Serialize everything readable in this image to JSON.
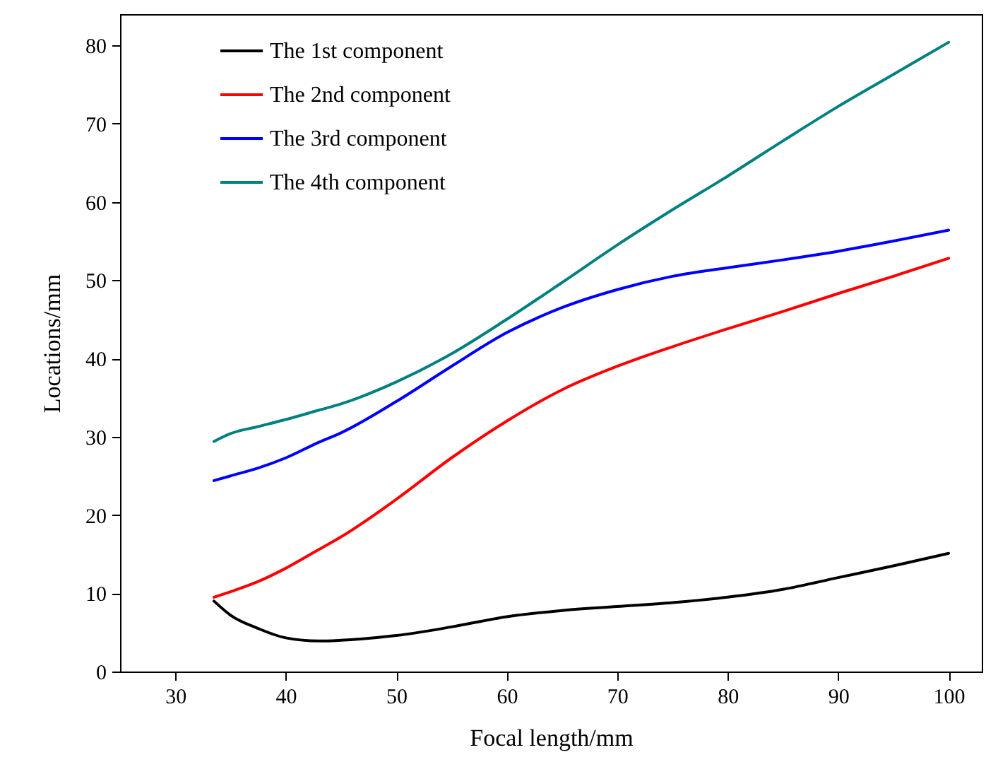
{
  "chart_data": {
    "type": "line",
    "xlabel": "Focal length/mm",
    "ylabel": "Locations/mm",
    "x": [
      33.5,
      35,
      37.5,
      40,
      43,
      45,
      50,
      55,
      60,
      65,
      70,
      75,
      80,
      85,
      90,
      95,
      100
    ],
    "series": [
      {
        "name": "The 1st component",
        "color": "#000000",
        "values": [
          9,
          7.2,
          5.5,
          4.3,
          3.9,
          4.0,
          4.6,
          5.7,
          7,
          7.8,
          8.3,
          8.8,
          9.5,
          10.5,
          12,
          13.5,
          15.1
        ]
      },
      {
        "name": "The 2nd component",
        "color": "#ff0000",
        "values": [
          9.5,
          10.2,
          11.5,
          13.2,
          15.6,
          17.2,
          22,
          27.3,
          32,
          36,
          39,
          41.5,
          43.8,
          46,
          48.3,
          50.5,
          52.8
        ]
      },
      {
        "name": "The 3rd component",
        "color": "#0000ff",
        "values": [
          24.4,
          25,
          26,
          27.3,
          29.3,
          30.5,
          34.5,
          39,
          43.3,
          46.5,
          48.8,
          50.5,
          51.6,
          52.6,
          53.7,
          55,
          56.4
        ]
      },
      {
        "name": "The 4th component",
        "color": "#008080",
        "values": [
          29.4,
          30.4,
          31.3,
          32.2,
          33.4,
          34.2,
          37,
          40.6,
          45,
          49.7,
          54.5,
          59,
          63.3,
          67.8,
          72.2,
          76.3,
          80.4
        ]
      }
    ],
    "xlim": [
      25,
      103
    ],
    "ylim": [
      0,
      84
    ],
    "xticks": [
      30,
      40,
      50,
      60,
      70,
      80,
      90,
      100
    ],
    "yticks": [
      0,
      10,
      20,
      30,
      40,
      50,
      60,
      70,
      80
    ],
    "legend": "top left",
    "line_style": "solid"
  }
}
